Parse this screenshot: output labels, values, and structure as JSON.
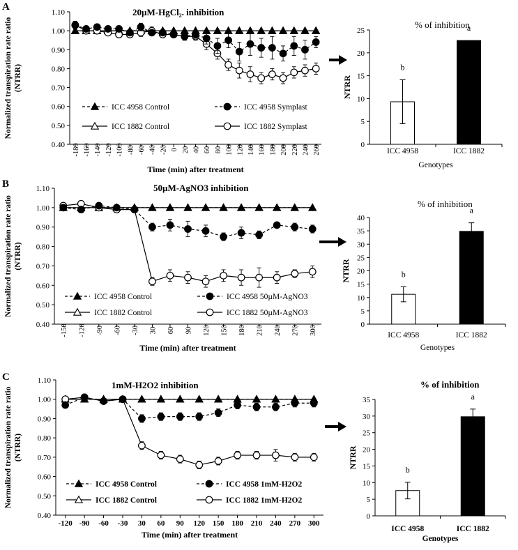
{
  "chart_data": [
    {
      "id": "A-line",
      "type": "line",
      "panel_label": "A",
      "title": "20µM-HgCl₂. inhibition",
      "xlabel": "Time (min) after treatment",
      "ylabel": "Normalized transpiration rate  ratio",
      "ylabel2": "(NTRR)",
      "x_ticks": [
        "-180",
        "-160",
        "-140",
        "-120",
        "-100",
        "-80",
        "-60",
        "-40",
        "-20",
        "0",
        "20",
        "40",
        "60",
        "80",
        "100",
        "120",
        "140",
        "160",
        "180",
        "200",
        "220",
        "240",
        "260"
      ],
      "x_tick_orientation": "vertical",
      "ylim": [
        0.4,
        1.1
      ],
      "y_ticks": [
        "0.40",
        "0.50",
        "0.60",
        "0.70",
        "0.80",
        "0.90",
        "1.00",
        "1.10"
      ],
      "series": [
        {
          "name": "ICC 4958 Control",
          "marker": "triangle-filled",
          "dash": true,
          "values": [
            1.0,
            1.0,
            1.0,
            1.0,
            1.0,
            1.0,
            1.0,
            1.0,
            1.0,
            1.0,
            1.0,
            1.0,
            1.0,
            1.0,
            1.0,
            1.0,
            1.0,
            1.0,
            1.0,
            1.0,
            1.0,
            1.0,
            1.0
          ],
          "err": []
        },
        {
          "name": "ICC 4958 Symplast",
          "marker": "circle-filled",
          "dash": true,
          "values": [
            1.03,
            1.01,
            1.02,
            1.01,
            1.01,
            0.99,
            1.02,
            0.99,
            0.99,
            0.98,
            0.97,
            0.98,
            0.96,
            0.92,
            0.95,
            0.89,
            0.93,
            0.91,
            0.91,
            0.88,
            0.92,
            0.9,
            0.94
          ],
          "err": [
            0.02,
            0.01,
            0.01,
            0.01,
            0.01,
            0.01,
            0.02,
            0.01,
            0.01,
            0.01,
            0.02,
            0.02,
            0.03,
            0.04,
            0.04,
            0.05,
            0.06,
            0.05,
            0.06,
            0.04,
            0.05,
            0.05,
            0.03
          ]
        },
        {
          "name": "ICC 1882 Control",
          "marker": "triangle-open",
          "dash": false,
          "values": [
            1.0,
            1.0,
            1.0,
            1.0,
            1.0,
            1.0,
            1.0,
            1.0,
            1.0,
            1.0,
            1.0,
            1.0,
            1.0,
            1.0,
            1.0,
            1.0,
            1.0,
            1.0,
            1.0,
            1.0,
            1.0,
            1.0,
            1.0
          ],
          "err": []
        },
        {
          "name": "ICC 1882 Symplast",
          "marker": "circle-open",
          "dash": false,
          "values": [
            1.03,
            1.0,
            1.0,
            0.99,
            0.98,
            0.98,
            0.99,
            1.0,
            0.98,
            0.98,
            0.97,
            0.97,
            0.93,
            0.88,
            0.82,
            0.79,
            0.77,
            0.75,
            0.77,
            0.75,
            0.78,
            0.79,
            0.8
          ],
          "err": [
            0.02,
            0.01,
            0.01,
            0.01,
            0.01,
            0.01,
            0.02,
            0.02,
            0.01,
            0.01,
            0.02,
            0.02,
            0.03,
            0.03,
            0.03,
            0.04,
            0.04,
            0.03,
            0.03,
            0.03,
            0.03,
            0.03,
            0.03
          ]
        }
      ]
    },
    {
      "id": "A-bar",
      "type": "bar",
      "title": "% of inhibition",
      "xlabel": "Genotypes",
      "ylabel": "NTRR",
      "ylim": [
        0,
        25
      ],
      "y_ticks": [
        "0",
        "5",
        "10",
        "15",
        "20",
        "25"
      ],
      "categories": [
        "ICC 4958",
        "ICC 1882"
      ],
      "values": [
        9.3,
        22.7
      ],
      "errors": [
        4.8,
        0
      ],
      "fills": [
        "open",
        "filled"
      ],
      "letters": [
        "b",
        "a"
      ]
    },
    {
      "id": "B-line",
      "type": "line",
      "panel_label": "B",
      "title": "50µM-AgNO3 inhibition",
      "xlabel": "Time (min) after treatment",
      "ylabel": "Normalized transpiration  rate  ratio",
      "ylabel2": "(NTRR)",
      "x_ticks": [
        "-150",
        "-120",
        "-90",
        "-60",
        "-30",
        "30",
        "60",
        "90",
        "120",
        "150",
        "180",
        "210",
        "240",
        "270",
        "300"
      ],
      "x_tick_orientation": "vertical",
      "ylim": [
        0.4,
        1.1
      ],
      "y_ticks": [
        "0.40",
        "0.50",
        "0.60",
        "0.70",
        "0.80",
        "0.90",
        "1.00",
        "1.10"
      ],
      "series": [
        {
          "name": "ICC 4958 Control",
          "marker": "triangle-filled",
          "dash": true,
          "values": [
            1.0,
            1.0,
            1.0,
            1.0,
            1.0,
            1.0,
            1.0,
            1.0,
            1.0,
            1.0,
            1.0,
            1.0,
            1.0,
            1.0,
            1.0
          ],
          "err": []
        },
        {
          "name": "ICC 4958 50µM-AgNO3",
          "marker": "circle-filled",
          "dash": true,
          "values": [
            1.0,
            0.99,
            1.01,
            1.0,
            0.99,
            0.9,
            0.91,
            0.89,
            0.88,
            0.85,
            0.87,
            0.86,
            0.91,
            0.9,
            0.89
          ],
          "err": [
            0.01,
            0.01,
            0.01,
            0.01,
            0.01,
            0.02,
            0.03,
            0.04,
            0.03,
            0.02,
            0.03,
            0.02,
            0.01,
            0.02,
            0.02
          ]
        },
        {
          "name": "ICC 1882 Control",
          "marker": "triangle-open",
          "dash": false,
          "values": [
            1.0,
            1.0,
            1.0,
            1.0,
            1.0,
            1.0,
            1.0,
            1.0,
            1.0,
            1.0,
            1.0,
            1.0,
            1.0,
            1.0,
            1.0
          ],
          "err": []
        },
        {
          "name": "ICC 1882 50µM-AgNO3",
          "marker": "circle-open",
          "dash": false,
          "values": [
            1.01,
            1.02,
            1.0,
            0.99,
            0.99,
            0.62,
            0.65,
            0.64,
            0.62,
            0.65,
            0.64,
            0.64,
            0.64,
            0.66,
            0.67
          ],
          "err": [
            0.01,
            0.01,
            0.01,
            0.01,
            0.01,
            0.02,
            0.03,
            0.03,
            0.03,
            0.03,
            0.04,
            0.05,
            0.03,
            0.02,
            0.03
          ]
        }
      ]
    },
    {
      "id": "B-bar",
      "type": "bar",
      "title": "% of inhibition",
      "xlabel": "Genotypes",
      "ylabel": "NTRR",
      "ylim": [
        0,
        40
      ],
      "y_ticks": [
        "0",
        "5",
        "10",
        "15",
        "20",
        "25",
        "30",
        "35",
        "40"
      ],
      "categories": [
        "ICC 4958",
        "ICC 1882"
      ],
      "values": [
        11.2,
        34.8
      ],
      "errors": [
        2.8,
        3.2
      ],
      "fills": [
        "open",
        "filled"
      ],
      "letters": [
        "b",
        "a"
      ]
    },
    {
      "id": "C-line",
      "type": "line",
      "panel_label": "C",
      "title": "1mM-H2O2 inhibition",
      "xlabel": "Time (min) after treatment",
      "ylabel": "Normalized transpiration rate ratio",
      "ylabel2": "(NTRR)",
      "x_ticks": [
        "-120",
        "-90",
        "-60",
        "-30",
        "30",
        "60",
        "90",
        "120",
        "150",
        "180",
        "210",
        "240",
        "270",
        "300"
      ],
      "x_tick_orientation": "horizontal",
      "ylim": [
        0.4,
        1.1
      ],
      "y_ticks": [
        "0.40",
        "0.50",
        "0.60",
        "0.70",
        "0.80",
        "0.90",
        "1.00",
        "1.10"
      ],
      "series": [
        {
          "name": "ICC 4958 Control",
          "marker": "triangle-filled",
          "dash": true,
          "values": [
            1.0,
            1.0,
            1.0,
            1.0,
            1.0,
            1.0,
            1.0,
            1.0,
            1.0,
            1.0,
            1.0,
            1.0,
            1.0,
            1.0
          ],
          "err": []
        },
        {
          "name": "ICC 4958 1mM-H2O2",
          "marker": "circle-filled",
          "dash": true,
          "values": [
            0.97,
            1.01,
            0.99,
            1.0,
            0.9,
            0.91,
            0.91,
            0.91,
            0.93,
            0.97,
            0.96,
            0.96,
            0.98,
            0.98
          ],
          "err": [
            0.01,
            0.01,
            0.01,
            0.01,
            0.02,
            0.02,
            0.02,
            0.02,
            0.02,
            0.02,
            0.02,
            0.02,
            0.02,
            0.02
          ]
        },
        {
          "name": "ICC 1882 Control",
          "marker": "triangle-open",
          "dash": false,
          "values": [
            1.0,
            1.0,
            1.0,
            1.0,
            1.0,
            1.0,
            1.0,
            1.0,
            1.0,
            1.0,
            1.0,
            1.0,
            1.0,
            1.0
          ],
          "err": []
        },
        {
          "name": "ICC 1882 1mM-H2O2",
          "marker": "circle-open",
          "dash": false,
          "values": [
            1.0,
            1.01,
            0.99,
            1.0,
            0.76,
            0.71,
            0.69,
            0.66,
            0.68,
            0.71,
            0.71,
            0.71,
            0.7,
            0.7
          ],
          "err": [
            0.01,
            0.01,
            0.01,
            0.01,
            0.02,
            0.02,
            0.02,
            0.02,
            0.02,
            0.02,
            0.02,
            0.03,
            0.02,
            0.02
          ]
        }
      ]
    },
    {
      "id": "C-bar",
      "type": "bar",
      "title": "% of inhibition",
      "xlabel": "Genotypes",
      "ylabel": "NTRR",
      "ylim": [
        0,
        35
      ],
      "y_ticks": [
        "0",
        "5",
        "10",
        "15",
        "20",
        "25",
        "30",
        "35"
      ],
      "categories": [
        "ICC 4958",
        "ICC 1882"
      ],
      "values": [
        7.6,
        29.8
      ],
      "errors": [
        2.5,
        2.3
      ],
      "fills": [
        "open",
        "filled"
      ],
      "letters": [
        "b",
        "a"
      ]
    }
  ]
}
